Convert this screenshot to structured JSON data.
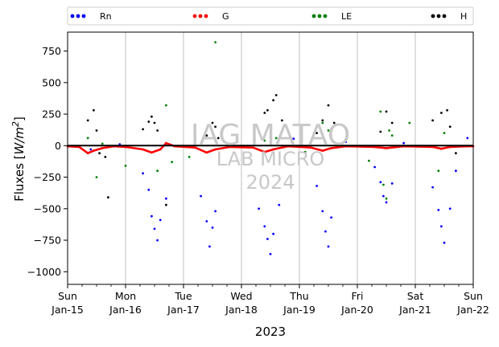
{
  "chart_data": {
    "type": "scatter",
    "title": "",
    "xlabel": "2023",
    "ylabel_main": "Fluxes [",
    "ylabel_unit": "W/m",
    "ylabel_exp": "2",
    "ylabel_close": "]",
    "ylim": [
      -1100,
      900
    ],
    "yticks": [
      750,
      500,
      250,
      0,
      -250,
      -500,
      -750,
      -1000
    ],
    "xlim": [
      0,
      7
    ],
    "grid": "vertical",
    "legend_placement": "top",
    "legend_entries": [
      "Rn",
      "G",
      "LE",
      "H"
    ],
    "xticks": [
      {
        "x": 0,
        "day": "Sun",
        "date": "Jan-15"
      },
      {
        "x": 1,
        "day": "Mon",
        "date": "Jan-16"
      },
      {
        "x": 2,
        "day": "Tue",
        "date": "Jan-17"
      },
      {
        "x": 3,
        "day": "Wed",
        "date": "Jan-18"
      },
      {
        "x": 4,
        "day": "Thu",
        "date": "Jan-19"
      },
      {
        "x": 5,
        "day": "Fri",
        "date": "Jan-20"
      },
      {
        "x": 6,
        "day": "Sat",
        "date": "Jan-21"
      },
      {
        "x": 7,
        "day": "Sun",
        "date": "Jan-22"
      }
    ],
    "series": [
      {
        "name": "Rn",
        "color": "#0000ff",
        "points": [
          [
            0.4,
            -30
          ],
          [
            1.3,
            -220
          ],
          [
            1.4,
            -350
          ],
          [
            1.45,
            -560
          ],
          [
            1.5,
            -660
          ],
          [
            1.55,
            -750
          ],
          [
            1.6,
            -590
          ],
          [
            1.7,
            -420
          ],
          [
            2.3,
            -400
          ],
          [
            2.4,
            -600
          ],
          [
            2.45,
            -800
          ],
          [
            2.5,
            -650
          ],
          [
            2.55,
            -520
          ],
          [
            3.3,
            -500
          ],
          [
            3.4,
            -640
          ],
          [
            3.45,
            -740
          ],
          [
            3.5,
            -860
          ],
          [
            3.55,
            -700
          ],
          [
            3.65,
            -470
          ],
          [
            4.3,
            -320
          ],
          [
            4.4,
            -520
          ],
          [
            4.45,
            -680
          ],
          [
            4.5,
            -800
          ],
          [
            4.55,
            -570
          ],
          [
            5.3,
            -170
          ],
          [
            5.4,
            -290
          ],
          [
            5.45,
            -400
          ],
          [
            5.5,
            -450
          ],
          [
            5.6,
            -300
          ],
          [
            6.3,
            -330
          ],
          [
            6.4,
            -510
          ],
          [
            6.45,
            -640
          ],
          [
            6.5,
            -770
          ],
          [
            6.6,
            -500
          ],
          [
            6.7,
            -200
          ],
          [
            0.9,
            10
          ],
          [
            2.2,
            40
          ],
          [
            3.9,
            55
          ],
          [
            4.8,
            30
          ],
          [
            5.8,
            20
          ],
          [
            6.9,
            60
          ]
        ]
      },
      {
        "name": "G",
        "color": "#ff0000",
        "points": [
          [
            0.0,
            -5
          ],
          [
            0.2,
            -10
          ],
          [
            0.35,
            -60
          ],
          [
            0.45,
            -40
          ],
          [
            0.6,
            -20
          ],
          [
            0.8,
            -5
          ],
          [
            1.0,
            -10
          ],
          [
            1.3,
            -30
          ],
          [
            1.45,
            -55
          ],
          [
            1.6,
            -30
          ],
          [
            1.7,
            20
          ],
          [
            1.85,
            -5
          ],
          [
            2.2,
            -15
          ],
          [
            2.4,
            -55
          ],
          [
            2.55,
            -30
          ],
          [
            2.8,
            -10
          ],
          [
            3.2,
            -15
          ],
          [
            3.4,
            -50
          ],
          [
            3.55,
            -30
          ],
          [
            3.8,
            -5
          ],
          [
            4.2,
            -15
          ],
          [
            4.4,
            -40
          ],
          [
            4.55,
            -20
          ],
          [
            4.8,
            -5
          ],
          [
            5.3,
            -10
          ],
          [
            5.5,
            -20
          ],
          [
            5.8,
            -5
          ],
          [
            6.3,
            -10
          ],
          [
            6.45,
            -25
          ],
          [
            6.6,
            -10
          ],
          [
            6.9,
            -5
          ],
          [
            7.0,
            -5
          ]
        ]
      },
      {
        "name": "LE",
        "color": "#008000",
        "points": [
          [
            0.5,
            -250
          ],
          [
            0.35,
            60
          ],
          [
            0.6,
            15
          ],
          [
            1.0,
            -160
          ],
          [
            1.7,
            320
          ],
          [
            1.55,
            -200
          ],
          [
            1.8,
            -130
          ],
          [
            2.1,
            -90
          ],
          [
            2.55,
            820
          ],
          [
            2.65,
            100
          ],
          [
            3.4,
            40
          ],
          [
            3.6,
            60
          ],
          [
            4.1,
            -50
          ],
          [
            4.4,
            180
          ],
          [
            4.5,
            120
          ],
          [
            5.2,
            -120
          ],
          [
            5.4,
            270
          ],
          [
            5.45,
            -310
          ],
          [
            5.5,
            -420
          ],
          [
            5.55,
            120
          ],
          [
            5.6,
            80
          ],
          [
            5.9,
            180
          ],
          [
            6.4,
            -200
          ],
          [
            6.5,
            100
          ]
        ]
      },
      {
        "name": "H",
        "color": "#000000",
        "points": [
          [
            0.35,
            200
          ],
          [
            0.45,
            280
          ],
          [
            0.5,
            120
          ],
          [
            0.55,
            -60
          ],
          [
            0.65,
            -90
          ],
          [
            0.7,
            -410
          ],
          [
            1.3,
            130
          ],
          [
            1.4,
            190
          ],
          [
            1.45,
            230
          ],
          [
            1.5,
            180
          ],
          [
            1.55,
            120
          ],
          [
            1.7,
            -470
          ],
          [
            2.4,
            80
          ],
          [
            2.5,
            180
          ],
          [
            2.55,
            150
          ],
          [
            2.6,
            60
          ],
          [
            3.4,
            260
          ],
          [
            3.45,
            280
          ],
          [
            3.55,
            360
          ],
          [
            3.6,
            400
          ],
          [
            3.7,
            200
          ],
          [
            4.3,
            100
          ],
          [
            4.4,
            200
          ],
          [
            4.5,
            320
          ],
          [
            4.6,
            180
          ],
          [
            5.4,
            110
          ],
          [
            5.5,
            270
          ],
          [
            5.6,
            180
          ],
          [
            6.3,
            200
          ],
          [
            6.45,
            260
          ],
          [
            6.55,
            280
          ],
          [
            6.6,
            150
          ],
          [
            6.7,
            -60
          ]
        ]
      }
    ]
  }
}
